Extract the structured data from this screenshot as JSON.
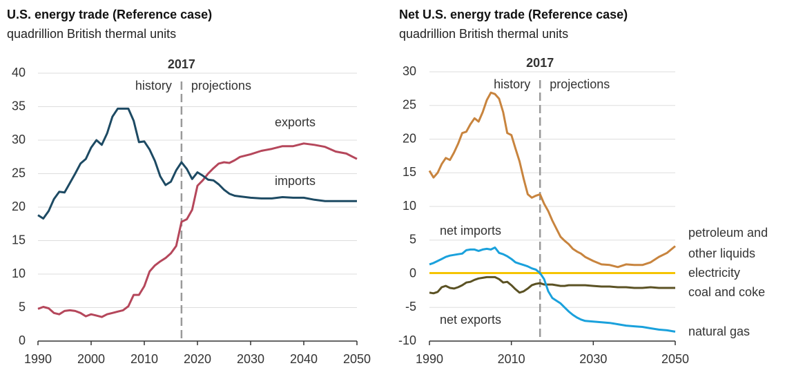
{
  "chart_data": [
    {
      "type": "line",
      "title": "U.S. energy trade (Reference case)",
      "subtitle": "quadrillion British thermal units",
      "divider": 2017,
      "left_label": "history",
      "right_label": "projections",
      "x": [
        1990,
        1991,
        1992,
        1993,
        1994,
        1995,
        1996,
        1997,
        1998,
        1999,
        2000,
        2001,
        2002,
        2003,
        2004,
        2005,
        2006,
        2007,
        2008,
        2009,
        2010,
        2011,
        2012,
        2013,
        2014,
        2015,
        2016,
        2017,
        2018,
        2019,
        2020,
        2021,
        2022,
        2023,
        2024,
        2025,
        2026,
        2027,
        2028,
        2030,
        2032,
        2034,
        2036,
        2038,
        2040,
        2042,
        2044,
        2046,
        2048,
        2050
      ],
      "series": [
        {
          "name": "exports",
          "color": "#b5475b",
          "values": [
            4.8,
            5.1,
            4.9,
            4.2,
            4.0,
            4.5,
            4.6,
            4.5,
            4.2,
            3.7,
            4.0,
            3.8,
            3.6,
            4.0,
            4.2,
            4.4,
            4.6,
            5.2,
            6.9,
            6.9,
            8.2,
            10.4,
            11.3,
            11.9,
            12.4,
            13.1,
            14.2,
            17.8,
            18.2,
            19.6,
            23.2,
            24.0,
            25.0,
            25.8,
            26.5,
            26.7,
            26.6,
            27.0,
            27.5,
            27.9,
            28.4,
            28.7,
            29.1,
            29.1,
            29.5,
            29.3,
            29.0,
            28.3,
            28.0,
            27.2
          ]
        },
        {
          "name": "imports",
          "color": "#1d4a63",
          "values": [
            18.8,
            18.3,
            19.4,
            21.2,
            22.3,
            22.2,
            23.6,
            25.0,
            26.5,
            27.2,
            28.9,
            30.0,
            29.3,
            31.0,
            33.5,
            34.7,
            34.7,
            34.7,
            32.9,
            29.7,
            29.8,
            28.6,
            26.9,
            24.6,
            23.3,
            23.8,
            25.5,
            26.7,
            25.7,
            24.2,
            25.2,
            24.7,
            24.1,
            24.0,
            23.4,
            22.6,
            22.0,
            21.7,
            21.6,
            21.4,
            21.3,
            21.3,
            21.5,
            21.4,
            21.4,
            21.1,
            20.9,
            20.9,
            20.9,
            20.9
          ]
        }
      ],
      "xlim": [
        1990,
        2050
      ],
      "xticks": [
        1990,
        2000,
        2010,
        2020,
        2030,
        2040,
        2050
      ],
      "ylim": [
        0,
        40
      ],
      "yticks": [
        0,
        5,
        10,
        15,
        20,
        25,
        30,
        35,
        40
      ],
      "grid": true
    },
    {
      "type": "line",
      "title": "Net U.S. energy trade (Reference case)",
      "subtitle": "quadrillion British thermal units",
      "divider": 2017,
      "left_label": "history",
      "right_label": "projections",
      "annotations": [
        "net imports",
        "net exports"
      ],
      "x": [
        1990,
        1991,
        1992,
        1993,
        1994,
        1995,
        1996,
        1997,
        1998,
        1999,
        2000,
        2001,
        2002,
        2003,
        2004,
        2005,
        2006,
        2007,
        2008,
        2009,
        2010,
        2011,
        2012,
        2013,
        2014,
        2015,
        2016,
        2017,
        2018,
        2019,
        2020,
        2021,
        2022,
        2023,
        2024,
        2025,
        2026,
        2027,
        2028,
        2030,
        2032,
        2034,
        2036,
        2038,
        2040,
        2042,
        2044,
        2046,
        2048,
        2050
      ],
      "series": [
        {
          "name": "petroleum and other liquids",
          "color": "#c8843e",
          "values": [
            15.3,
            14.3,
            15.0,
            16.3,
            17.2,
            16.9,
            18.0,
            19.3,
            20.9,
            21.1,
            22.2,
            23.1,
            22.6,
            24.0,
            25.8,
            26.9,
            26.7,
            26.0,
            24.0,
            20.9,
            20.6,
            18.6,
            16.7,
            14.1,
            11.8,
            11.3,
            11.6,
            11.8,
            10.4,
            9.3,
            7.9,
            6.7,
            5.5,
            4.9,
            4.4,
            3.7,
            3.3,
            3.0,
            2.5,
            1.9,
            1.4,
            1.3,
            1.0,
            1.4,
            1.3,
            1.3,
            1.7,
            2.5,
            3.1,
            4.1
          ]
        },
        {
          "name": "electricity",
          "color": "#f5c400",
          "values": [
            0.1,
            0.1,
            0.1,
            0.1,
            0.1,
            0.1,
            0.1,
            0.1,
            0.1,
            0.1,
            0.1,
            0.1,
            0.1,
            0.1,
            0.1,
            0.1,
            0.1,
            0.1,
            0.1,
            0.1,
            0.1,
            0.1,
            0.1,
            0.1,
            0.1,
            0.1,
            0.1,
            0.1,
            0.1,
            0.1,
            0.1,
            0.1,
            0.1,
            0.1,
            0.1,
            0.1,
            0.1,
            0.1,
            0.1,
            0.1,
            0.1,
            0.1,
            0.1,
            0.1,
            0.1,
            0.1,
            0.1,
            0.1,
            0.1,
            0.1
          ]
        },
        {
          "name": "coal and coke",
          "color": "#5b5224",
          "values": [
            -2.8,
            -2.9,
            -2.7,
            -2.0,
            -1.8,
            -2.1,
            -2.2,
            -2.0,
            -1.7,
            -1.3,
            -1.2,
            -0.9,
            -0.7,
            -0.6,
            -0.5,
            -0.5,
            -0.5,
            -0.8,
            -1.3,
            -1.2,
            -1.7,
            -2.3,
            -2.8,
            -2.6,
            -2.2,
            -1.7,
            -1.5,
            -1.4,
            -1.6,
            -1.6,
            -1.6,
            -1.7,
            -1.8,
            -1.8,
            -1.7,
            -1.7,
            -1.7,
            -1.7,
            -1.7,
            -1.8,
            -1.9,
            -1.9,
            -2.0,
            -2.0,
            -2.1,
            -2.1,
            -2.0,
            -2.1,
            -2.1,
            -2.1
          ]
        },
        {
          "name": "natural gas",
          "color": "#1aa1dc",
          "values": [
            1.4,
            1.6,
            1.9,
            2.2,
            2.5,
            2.7,
            2.8,
            2.9,
            3.0,
            3.5,
            3.6,
            3.6,
            3.4,
            3.6,
            3.7,
            3.6,
            3.9,
            3.1,
            2.9,
            2.6,
            2.2,
            1.7,
            1.5,
            1.3,
            1.1,
            0.8,
            0.6,
            0.1,
            -0.8,
            -2.6,
            -3.6,
            -4.0,
            -4.4,
            -5.0,
            -5.6,
            -6.1,
            -6.5,
            -6.8,
            -7.0,
            -7.1,
            -7.2,
            -7.3,
            -7.5,
            -7.7,
            -7.8,
            -7.9,
            -8.1,
            -8.3,
            -8.4,
            -8.6
          ]
        }
      ],
      "xlim": [
        1990,
        2050
      ],
      "xticks": [
        1990,
        2010,
        2030,
        2050
      ],
      "ylim": [
        -10,
        30
      ],
      "yticks": [
        -10,
        -5,
        0,
        5,
        10,
        15,
        20,
        25,
        30
      ],
      "grid": true
    }
  ]
}
